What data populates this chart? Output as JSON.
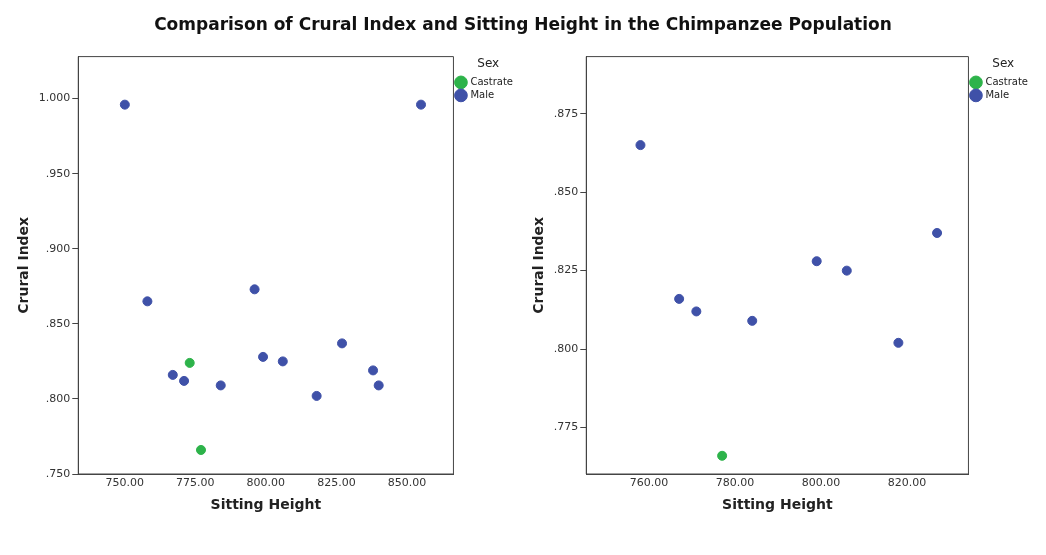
{
  "chart_data": [
    {
      "type": "scatter",
      "title": "Comparison of Crural Index and Sitting Height in the Chimpanzee Population",
      "xlabel": "Sitting Height",
      "ylabel": "Crural Index",
      "legend_title": "Sex",
      "legend": "top right",
      "grid": false,
      "marker": "circle",
      "xlim": [
        733.5,
        866.5
      ],
      "xticks": [
        {
          "value": 750,
          "label": "750.00"
        },
        {
          "value": 775,
          "label": "775.00"
        },
        {
          "value": 800,
          "label": "800.00"
        },
        {
          "value": 825,
          "label": "825.00"
        },
        {
          "value": 850,
          "label": "850.00"
        }
      ],
      "ylim": [
        0.75,
        1.028
      ],
      "yticks": [
        {
          "value": 0.75,
          "label": ".750"
        },
        {
          "value": 0.8,
          "label": ".800"
        },
        {
          "value": 0.85,
          "label": ".850"
        },
        {
          "value": 0.9,
          "label": ".900"
        },
        {
          "value": 0.95,
          "label": ".950"
        },
        {
          "value": 1,
          "label": "1.000"
        }
      ],
      "series": [
        {
          "name": "Castrate",
          "color": "#2db34a",
          "x": [
            773,
            777
          ],
          "values": [
            0.824,
            0.766
          ]
        },
        {
          "name": "Male",
          "color": "#3f51a8",
          "x": [
            750,
            855,
            758,
            796,
            767,
            771,
            784,
            799,
            806,
            818,
            827,
            838,
            840
          ],
          "values": [
            0.996,
            0.996,
            0.865,
            0.873,
            0.816,
            0.812,
            0.809,
            0.828,
            0.825,
            0.802,
            0.837,
            0.819,
            0.809
          ]
        }
      ]
    },
    {
      "type": "scatter",
      "xlabel": "Sitting Height",
      "ylabel": "Crural Index",
      "legend_title": "Sex",
      "legend": "top right",
      "grid": false,
      "marker": "circle",
      "xlim": [
        745.4,
        834.3
      ],
      "xticks": [
        {
          "value": 760,
          "label": "760.00"
        },
        {
          "value": 780,
          "label": "780.00"
        },
        {
          "value": 800,
          "label": "800.00"
        },
        {
          "value": 820,
          "label": "820.00"
        }
      ],
      "ylim": [
        0.7602,
        0.8932
      ],
      "yticks": [
        {
          "value": 0.775,
          "label": ".775"
        },
        {
          "value": 0.8,
          "label": ".800"
        },
        {
          "value": 0.825,
          "label": ".825"
        },
        {
          "value": 0.85,
          "label": ".850"
        },
        {
          "value": 0.875,
          "label": ".875"
        }
      ],
      "series": [
        {
          "name": "Castrate",
          "color": "#2db34a",
          "x": [
            777
          ],
          "values": [
            0.766
          ]
        },
        {
          "name": "Male",
          "color": "#3f51a8",
          "x": [
            758,
            767,
            771,
            784,
            799,
            806,
            818,
            827
          ],
          "values": [
            0.865,
            0.816,
            0.812,
            0.809,
            0.828,
            0.825,
            0.802,
            0.837
          ]
        }
      ]
    }
  ]
}
